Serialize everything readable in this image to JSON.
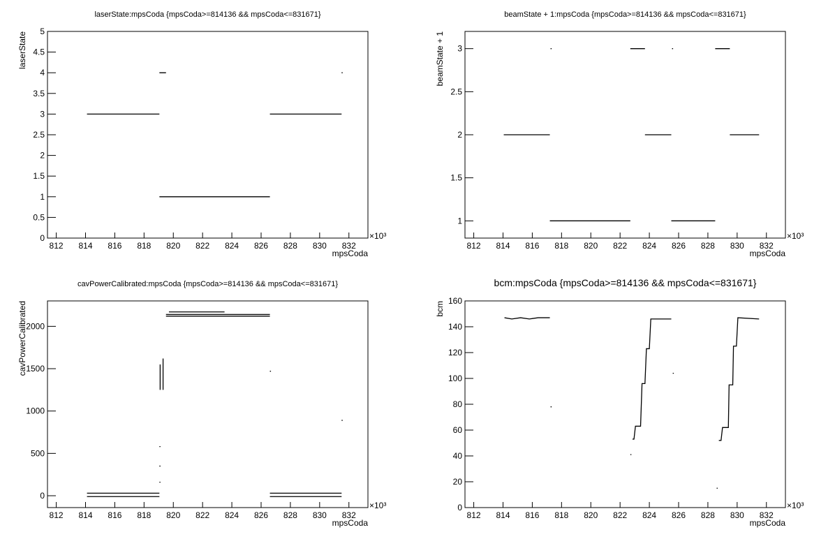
{
  "chart_data": [
    {
      "type": "scatter",
      "title": "laserState:mpsCoda {mpsCoda>=814136 && mpsCoda<=831671}",
      "x_label": "mpsCoda",
      "y_label": "laserState",
      "x_exponent": "×10³",
      "xlim": [
        811.4,
        833.3
      ],
      "xticks": [
        812,
        814,
        816,
        818,
        820,
        822,
        824,
        826,
        828,
        830,
        832
      ],
      "ylim": [
        0,
        5
      ],
      "yticks": [
        0,
        0.5,
        1,
        1.5,
        2,
        2.5,
        3,
        3.5,
        4,
        4.5,
        5
      ],
      "series": [
        {
          "color": "#000000",
          "x": [
            814.1,
            819.05,
            null,
            819.05,
            819.5,
            null,
            819.05,
            826.6,
            null,
            826.6,
            831.5,
            null,
            831.5
          ],
          "values": [
            3,
            3,
            null,
            4,
            4,
            null,
            1,
            1,
            null,
            3,
            3,
            null,
            4
          ]
        }
      ]
    },
    {
      "type": "scatter",
      "title": "beamState + 1:mpsCoda {mpsCoda>=814136 && mpsCoda<=831671}",
      "x_label": "mpsCoda",
      "y_label": "beamState + 1",
      "x_exponent": "×10³",
      "xlim": [
        811.4,
        833.3
      ],
      "xticks": [
        812,
        814,
        816,
        818,
        820,
        822,
        824,
        826,
        828,
        830,
        832
      ],
      "ylim": [
        0.8,
        3.2
      ],
      "yticks": [
        1,
        1.5,
        2,
        2.5,
        3
      ],
      "series": [
        {
          "color": "#000000",
          "x": [
            814.05,
            817.2,
            null,
            817.25,
            null,
            817.2,
            822.7,
            null,
            822.7,
            823.7,
            null,
            823.7,
            825.5,
            null,
            825.55,
            null,
            825.5,
            828.5,
            null,
            828.5,
            829.5,
            null,
            829.5,
            831.5
          ],
          "values": [
            2,
            2,
            null,
            3,
            null,
            1,
            1,
            null,
            3,
            3,
            null,
            2,
            2,
            null,
            3,
            null,
            1,
            1,
            null,
            3,
            3,
            null,
            2,
            2
          ]
        }
      ]
    },
    {
      "type": "scatter",
      "title": "cavPowerCalibrated:mpsCoda {mpsCoda>=814136 && mpsCoda<=831671}",
      "x_label": "mpsCoda",
      "y_label": "cavPowerCalibrated",
      "x_exponent": "×10³",
      "xlim": [
        811.4,
        833.3
      ],
      "xticks": [
        812,
        814,
        816,
        818,
        820,
        822,
        824,
        826,
        828,
        830,
        832
      ],
      "ylim": [
        -140,
        2300
      ],
      "yticks": [
        0,
        500,
        1000,
        1500,
        2000
      ],
      "series": [
        {
          "color": "#000000",
          "x": [
            814.1,
            819.05,
            null,
            814.1,
            819.05,
            null,
            819.05,
            null,
            819.05,
            null,
            819.05,
            null,
            819.1,
            819.1,
            null,
            819.3,
            819.3,
            null,
            819.5,
            826.6,
            null,
            819.5,
            826.6,
            null,
            819.7,
            823.5,
            null,
            826.6,
            null,
            826.6,
            831.5,
            null,
            826.6,
            831.5,
            null,
            831.5
          ],
          "values": [
            30,
            30,
            null,
            -10,
            -10,
            null,
            580,
            null,
            350,
            null,
            160,
            null,
            1250,
            1550,
            null,
            1250,
            1620,
            null,
            2140,
            2140,
            null,
            2120,
            2120,
            null,
            2170,
            2170,
            null,
            1470,
            null,
            30,
            30,
            null,
            -10,
            -10,
            null,
            890
          ]
        }
      ]
    },
    {
      "type": "scatter",
      "title": "bcm:mpsCoda {mpsCoda>=814136 && mpsCoda<=831671}",
      "x_label": "mpsCoda",
      "y_label": "bcm",
      "x_exponent": "×10³",
      "xlim": [
        811.4,
        833.3
      ],
      "xticks": [
        812,
        814,
        816,
        818,
        820,
        822,
        824,
        826,
        828,
        830,
        832
      ],
      "ylim": [
        0,
        160
      ],
      "yticks": [
        0,
        20,
        40,
        60,
        80,
        100,
        120,
        140,
        160
      ],
      "series": [
        {
          "color": "#000000",
          "x": [
            814.1,
            814.6,
            815.2,
            815.8,
            816.4,
            817.2,
            null,
            817.25,
            null,
            822.7,
            null,
            822.85,
            822.95,
            823.05,
            823.1,
            823.4,
            823.5,
            823.7,
            823.8,
            824.0,
            824.1,
            825.5,
            null,
            825.6,
            null,
            828.6,
            null,
            828.75,
            828.9,
            829.0,
            829.4,
            829.45,
            829.7,
            829.75,
            829.95,
            830.05,
            831.5
          ],
          "values": [
            147,
            146,
            147,
            146,
            147,
            147,
            null,
            78,
            null,
            41,
            null,
            53,
            53,
            63,
            63,
            63,
            96,
            96,
            123,
            123,
            146,
            146,
            null,
            104,
            null,
            15,
            null,
            52,
            52,
            62,
            62,
            95,
            95,
            125,
            125,
            147,
            146
          ]
        }
      ]
    }
  ]
}
